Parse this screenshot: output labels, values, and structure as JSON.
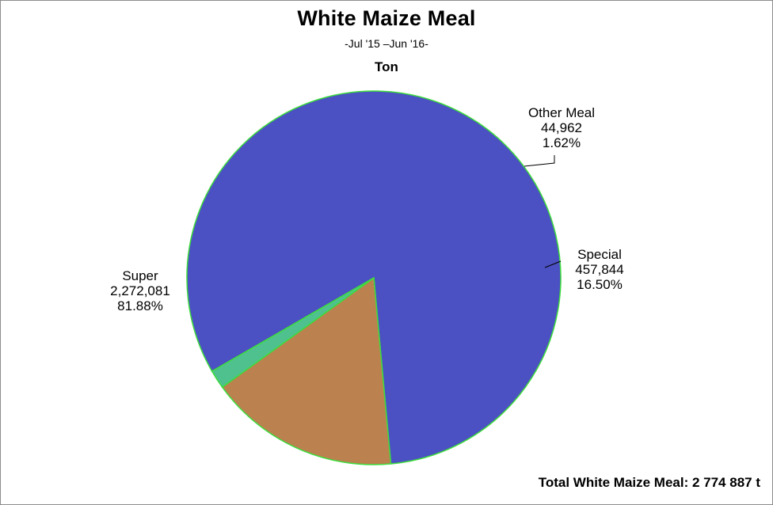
{
  "chart_data": {
    "type": "pie",
    "title": "White Maize Meal",
    "subtitle": "-Jul '15 –Jun '16-",
    "unit_label": "Ton",
    "total_label": "Total White Maize Meal: 2 774 887 t",
    "slices": [
      {
        "label": "Super",
        "value": 2272081,
        "value_text": "2,272,081",
        "percent": 81.88,
        "percent_text": "81.88%",
        "color": "#4b50c2"
      },
      {
        "label": "Special",
        "value": 457844,
        "value_text": "457,844",
        "percent": 16.5,
        "percent_text": "16.50%",
        "color": "#bb814f"
      },
      {
        "label": "Other Meal",
        "value": 44962,
        "value_text": "44,962",
        "percent": 1.62,
        "percent_text": "1.62%",
        "color": "#4ec18f"
      }
    ],
    "border_color": "#3ddc3d"
  }
}
